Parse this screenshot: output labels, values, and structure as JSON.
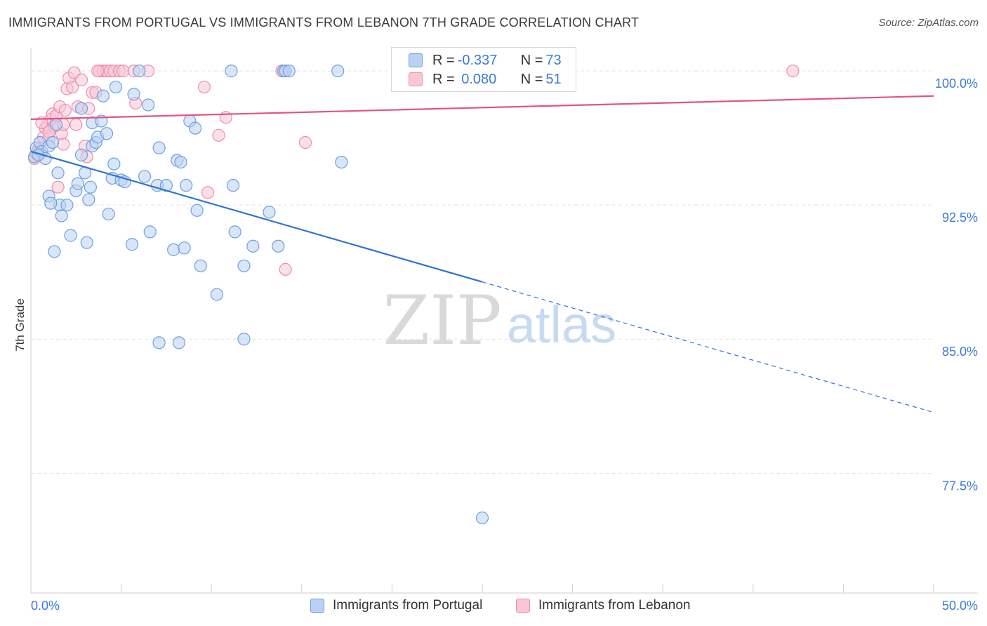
{
  "header": {
    "title": "IMMIGRANTS FROM PORTUGAL VS IMMIGRANTS FROM LEBANON 7TH GRADE CORRELATION CHART",
    "source": "Source: ZipAtlas.com"
  },
  "legend": {
    "rows": [
      {
        "r_label": "R = ",
        "r_value": "-0.337",
        "n_label": "N = ",
        "n_value": "73",
        "color": "#8fb6ea"
      },
      {
        "r_label": "R = ",
        "r_value": " 0.080",
        "n_label": "N = ",
        "n_value": "51",
        "color": "#f4a3bd"
      }
    ]
  },
  "watermark": {
    "zip": "ZIP",
    "atlas": "atlas"
  },
  "colors": {
    "blue_fill": "#b9d1f2",
    "blue_stroke": "#6f9fe0",
    "blue_line": "#2f74d0",
    "pink_fill": "#f8c6d5",
    "pink_stroke": "#ec8fae",
    "pink_line": "#e2557e",
    "tick_text": "#3a7bd5",
    "grid": "#e3e3e3"
  },
  "chart_data": {
    "type": "scatter",
    "title": "IMMIGRANTS FROM PORTUGAL VS IMMIGRANTS FROM LEBANON 7TH GRADE CORRELATION CHART",
    "xlabel": "",
    "ylabel": "7th Grade",
    "xlim": [
      0,
      50
    ],
    "ylim": [
      70.8,
      101.3
    ],
    "x_tick_labels": [
      "0.0%",
      "50.0%"
    ],
    "y_ticks": [
      77.5,
      85.0,
      92.5,
      100.0
    ],
    "y_tick_labels": [
      "77.5%",
      "85.0%",
      "92.5%",
      "100.0%"
    ],
    "grid": true,
    "legend_position": "top-center",
    "series": [
      {
        "name": "Immigrants from Portugal",
        "color": "#6f9fe0",
        "points": [
          [
            0.2,
            95.2
          ],
          [
            0.3,
            95.7
          ],
          [
            0.5,
            96.0
          ],
          [
            0.6,
            95.5
          ],
          [
            0.8,
            95.1
          ],
          [
            1.0,
            95.8
          ],
          [
            1.2,
            96.0
          ],
          [
            1.4,
            97.0
          ],
          [
            1.5,
            94.3
          ],
          [
            1.6,
            92.5
          ],
          [
            1.7,
            91.9
          ],
          [
            1.0,
            93.0
          ],
          [
            1.1,
            92.6
          ],
          [
            1.3,
            89.9
          ],
          [
            2.0,
            92.5
          ],
          [
            2.2,
            90.8
          ],
          [
            2.5,
            93.3
          ],
          [
            2.6,
            93.7
          ],
          [
            2.8,
            95.3
          ],
          [
            2.8,
            97.9
          ],
          [
            3.0,
            94.3
          ],
          [
            3.1,
            90.4
          ],
          [
            3.2,
            92.8
          ],
          [
            3.3,
            93.5
          ],
          [
            3.4,
            95.8
          ],
          [
            3.4,
            97.1
          ],
          [
            3.6,
            96.0
          ],
          [
            3.7,
            96.3
          ],
          [
            3.9,
            97.2
          ],
          [
            4.0,
            98.6
          ],
          [
            4.2,
            96.5
          ],
          [
            4.3,
            92.0
          ],
          [
            4.5,
            94.0
          ],
          [
            4.6,
            94.8
          ],
          [
            4.7,
            99.1
          ],
          [
            5.0,
            93.9
          ],
          [
            5.2,
            93.8
          ],
          [
            5.6,
            90.3
          ],
          [
            5.7,
            98.7
          ],
          [
            6.0,
            100.0
          ],
          [
            6.3,
            94.1
          ],
          [
            6.5,
            98.1
          ],
          [
            6.6,
            91.0
          ],
          [
            7.0,
            93.6
          ],
          [
            7.1,
            95.7
          ],
          [
            7.5,
            93.6
          ],
          [
            7.9,
            90.0
          ],
          [
            8.1,
            95.0
          ],
          [
            8.3,
            94.9
          ],
          [
            8.5,
            90.1
          ],
          [
            8.6,
            93.6
          ],
          [
            8.8,
            97.2
          ],
          [
            9.1,
            96.8
          ],
          [
            9.2,
            92.2
          ],
          [
            9.4,
            89.1
          ],
          [
            10.3,
            87.5
          ],
          [
            11.1,
            100.0
          ],
          [
            11.2,
            93.6
          ],
          [
            11.3,
            91.0
          ],
          [
            11.8,
            89.1
          ],
          [
            12.3,
            90.2
          ],
          [
            13.2,
            92.1
          ],
          [
            13.7,
            90.2
          ],
          [
            14.0,
            100.0
          ],
          [
            14.1,
            100.0
          ],
          [
            14.3,
            100.0
          ],
          [
            17.0,
            100.0
          ],
          [
            17.2,
            94.9
          ],
          [
            7.1,
            84.8
          ],
          [
            8.2,
            84.8
          ],
          [
            11.8,
            85.0
          ],
          [
            25.0,
            75.0
          ],
          [
            0.4,
            95.3
          ]
        ]
      },
      {
        "name": "Immigrants from Lebanon",
        "color": "#ec8fae",
        "points": [
          [
            0.2,
            95.1
          ],
          [
            0.4,
            95.6
          ],
          [
            0.5,
            96.0
          ],
          [
            0.7,
            96.3
          ],
          [
            0.8,
            96.8
          ],
          [
            0.9,
            97.0
          ],
          [
            1.0,
            96.2
          ],
          [
            1.1,
            97.3
          ],
          [
            1.2,
            97.6
          ],
          [
            1.3,
            96.9
          ],
          [
            1.4,
            97.5
          ],
          [
            1.6,
            98.0
          ],
          [
            1.7,
            96.5
          ],
          [
            1.8,
            97.0
          ],
          [
            1.9,
            97.8
          ],
          [
            2.0,
            99.0
          ],
          [
            2.1,
            99.6
          ],
          [
            2.3,
            99.1
          ],
          [
            2.4,
            99.9
          ],
          [
            2.6,
            98.0
          ],
          [
            2.8,
            99.5
          ],
          [
            3.0,
            95.8
          ],
          [
            3.1,
            95.2
          ],
          [
            3.2,
            97.9
          ],
          [
            3.4,
            98.8
          ],
          [
            3.6,
            98.8
          ],
          [
            3.8,
            100.0
          ],
          [
            4.0,
            100.0
          ],
          [
            4.2,
            100.0
          ],
          [
            4.4,
            100.0
          ],
          [
            4.6,
            100.0
          ],
          [
            4.9,
            100.0
          ],
          [
            5.1,
            100.0
          ],
          [
            5.7,
            100.0
          ],
          [
            5.8,
            98.2
          ],
          [
            6.5,
            100.0
          ],
          [
            9.6,
            99.1
          ],
          [
            9.8,
            93.2
          ],
          [
            10.4,
            96.4
          ],
          [
            10.8,
            97.4
          ],
          [
            13.9,
            100.0
          ],
          [
            14.1,
            88.9
          ],
          [
            15.2,
            96.0
          ],
          [
            42.2,
            100.0
          ],
          [
            1.5,
            93.5
          ],
          [
            1.0,
            96.6
          ],
          [
            0.6,
            97.1
          ],
          [
            3.7,
            100.0
          ],
          [
            2.5,
            97.0
          ],
          [
            0.3,
            95.4
          ],
          [
            1.8,
            95.9
          ]
        ]
      }
    ],
    "trend_lines": [
      {
        "series": "Immigrants from Portugal",
        "x": [
          0,
          25
        ],
        "y": [
          95.5,
          88.2
        ],
        "dashed_extension_to": [
          50,
          80.9
        ]
      },
      {
        "series": "Immigrants from Lebanon",
        "x": [
          0,
          50
        ],
        "y": [
          97.3,
          98.6
        ]
      }
    ]
  }
}
